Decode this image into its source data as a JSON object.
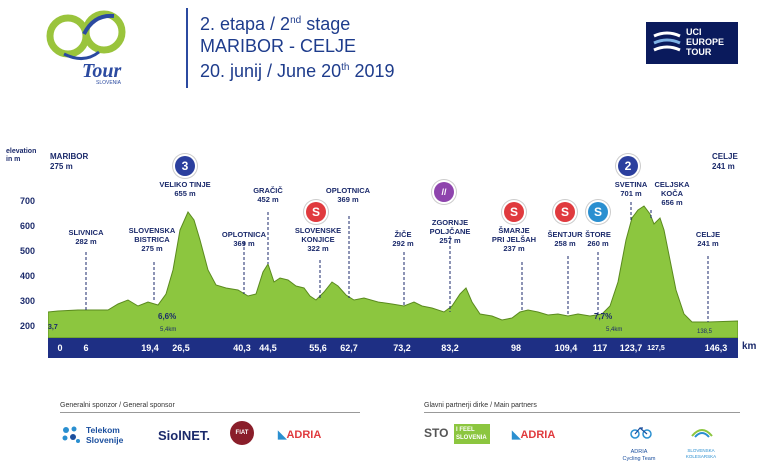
{
  "brand": {
    "logo_text": "Tour",
    "logo_sub": "SLOVENIA"
  },
  "header": {
    "line1_prefix": "2. etapa / 2",
    "line1_sup": "nd",
    "line1_suffix": " stage",
    "line2": "MARIBOR - CELJE",
    "line3_prefix": "20. junij / June 20",
    "line3_sup": "th",
    "line3_suffix": " 2019"
  },
  "uci": {
    "l1": "UCI",
    "l2": "EUROPE",
    "l3": "TOUR"
  },
  "profile": {
    "y_axis_title": "elevation\nin m",
    "y_ticks": [
      "700",
      "600",
      "500",
      "400",
      "300",
      "200"
    ],
    "start": {
      "name": "MARIBOR",
      "elev": "275 m"
    },
    "finish": {
      "name": "CELJE",
      "elev": "241 m"
    },
    "km_unit": "km",
    "km_marks": [
      "0",
      "6",
      "19,4",
      "26,5",
      "40,3",
      "44,5",
      "55,6",
      "62,7",
      "73,2",
      "83,2",
      "98",
      "109,4",
      "117",
      "123,7",
      "127,5",
      "146,3"
    ],
    "gradients": [
      "3,7",
      "6,6%",
      "5,4km",
      "7,7%",
      "5,4km",
      "138,5"
    ],
    "waypoints": [
      {
        "name": "SLIVNICA",
        "elev": "282 m"
      },
      {
        "name": "SLOVENSKA\nBISTRICA",
        "elev": "275 m"
      },
      {
        "name": "VELIKO TINJE",
        "elev": "655 m",
        "badge": "3"
      },
      {
        "name": "OPLOTNICA",
        "elev": "369 m"
      },
      {
        "name": "GRAČIČ",
        "elev": "452 m"
      },
      {
        "name": "SLOVENSKE\nKONJICE",
        "elev": "322 m",
        "badge": "S"
      },
      {
        "name": "OPLOTNICA",
        "elev": "369 m"
      },
      {
        "name": "ŽIČE",
        "elev": "292 m"
      },
      {
        "name": "ZGORNJE\nPOLJČANE",
        "elev": "257 m",
        "badge": "//"
      },
      {
        "name": "ŠMARJE\nPRI JELŠAH",
        "elev": "237 m",
        "badge": "S"
      },
      {
        "name": "ŠENTJUR",
        "elev": "258 m",
        "badge": "S"
      },
      {
        "name": "ŠTORE",
        "elev": "260 m",
        "badge": "S"
      },
      {
        "name": "SVETINA",
        "elev": "701 m",
        "badge": "2"
      },
      {
        "name": "CELJSKA\nKOČA",
        "elev": "656 m"
      },
      {
        "name": "CELJE",
        "elev": "241 m"
      }
    ]
  },
  "sponsors": {
    "general_title": "Generalni sponzor / General sponsor",
    "general": [
      "Telekom\nSlovenije",
      "SiolNET.",
      "FIAT",
      "ADRIA"
    ],
    "partners_title": "Glavni partnerji dirke / Main partners",
    "partners": [
      "STO",
      "I FEEL\nSLOVENIA",
      "ADRIA",
      "ADRIA\nCycling Team",
      "SLOVENSKA\nKOLESARSKA"
    ]
  },
  "colors": {
    "profile": "#8cc63f",
    "bar": "#1e2f84",
    "badge_blue": "#2b3f9e",
    "badge_red": "#e03a3e",
    "badge_lightblue": "#2a8fd0",
    "badge_purple": "#8e44ad"
  }
}
